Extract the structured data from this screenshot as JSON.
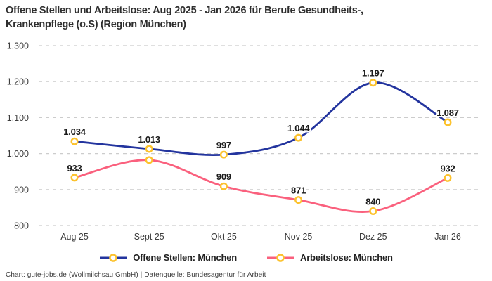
{
  "header": {
    "title_line1": "Offene Stellen und Arbeitslose: Aug 2025 - Jan 2026 für Berufe Gesundheits-,",
    "title_line2": "Krankenpflege (o.S) (Region München)"
  },
  "footer": {
    "source_text": "Chart: gute-jobs.de (Wollmilchsau GmbH) | Datenquelle: Bundesagentur für Arbeit"
  },
  "colors": {
    "series_open_positions": "#23349e",
    "series_unemployed": "#fa607d",
    "marker_ring": "#fcc22d",
    "marker_fill": "#ffffff",
    "grid": "#cccccc",
    "tick_text": "#3c3c3c",
    "data_label_text": "#1b1b1b",
    "title_text": "#2e2e2e"
  },
  "chart_data": {
    "type": "line",
    "title": "Offene Stellen und Arbeitslose: Aug 2025 - Jan 2026 für Berufe Gesundheits-, Krankenpflege (o.S) (Region München)",
    "categories": [
      "Aug 25",
      "Sept 25",
      "Okt 25",
      "Nov 25",
      "Dez 25",
      "Jan 26"
    ],
    "series": [
      {
        "name": "Offene Stellen: München",
        "color": "#23349e",
        "values": [
          1034,
          1013,
          997,
          1044,
          1197,
          1087
        ],
        "point_labels": [
          "1.034",
          "1.013",
          "997",
          "1.044",
          "1.197",
          "1.087"
        ]
      },
      {
        "name": "Arbeitslose: München",
        "color": "#fa607d",
        "values": [
          933,
          982,
          909,
          871,
          840,
          932
        ],
        "point_labels": [
          "933",
          "",
          "909",
          "871",
          "840",
          "932"
        ]
      }
    ],
    "marker": {
      "fill": "#ffffff",
      "ring": "#fcc22d"
    },
    "ylim": [
      800,
      1300
    ],
    "yticks": [
      800,
      900,
      1000,
      1100,
      1200,
      1300
    ],
    "ytick_labels": [
      "800",
      "900",
      "1.000",
      "1.100",
      "1.200",
      "1.300"
    ],
    "grid": "horizontal-dashed",
    "legend_position": "bottom",
    "curve": "smooth"
  }
}
